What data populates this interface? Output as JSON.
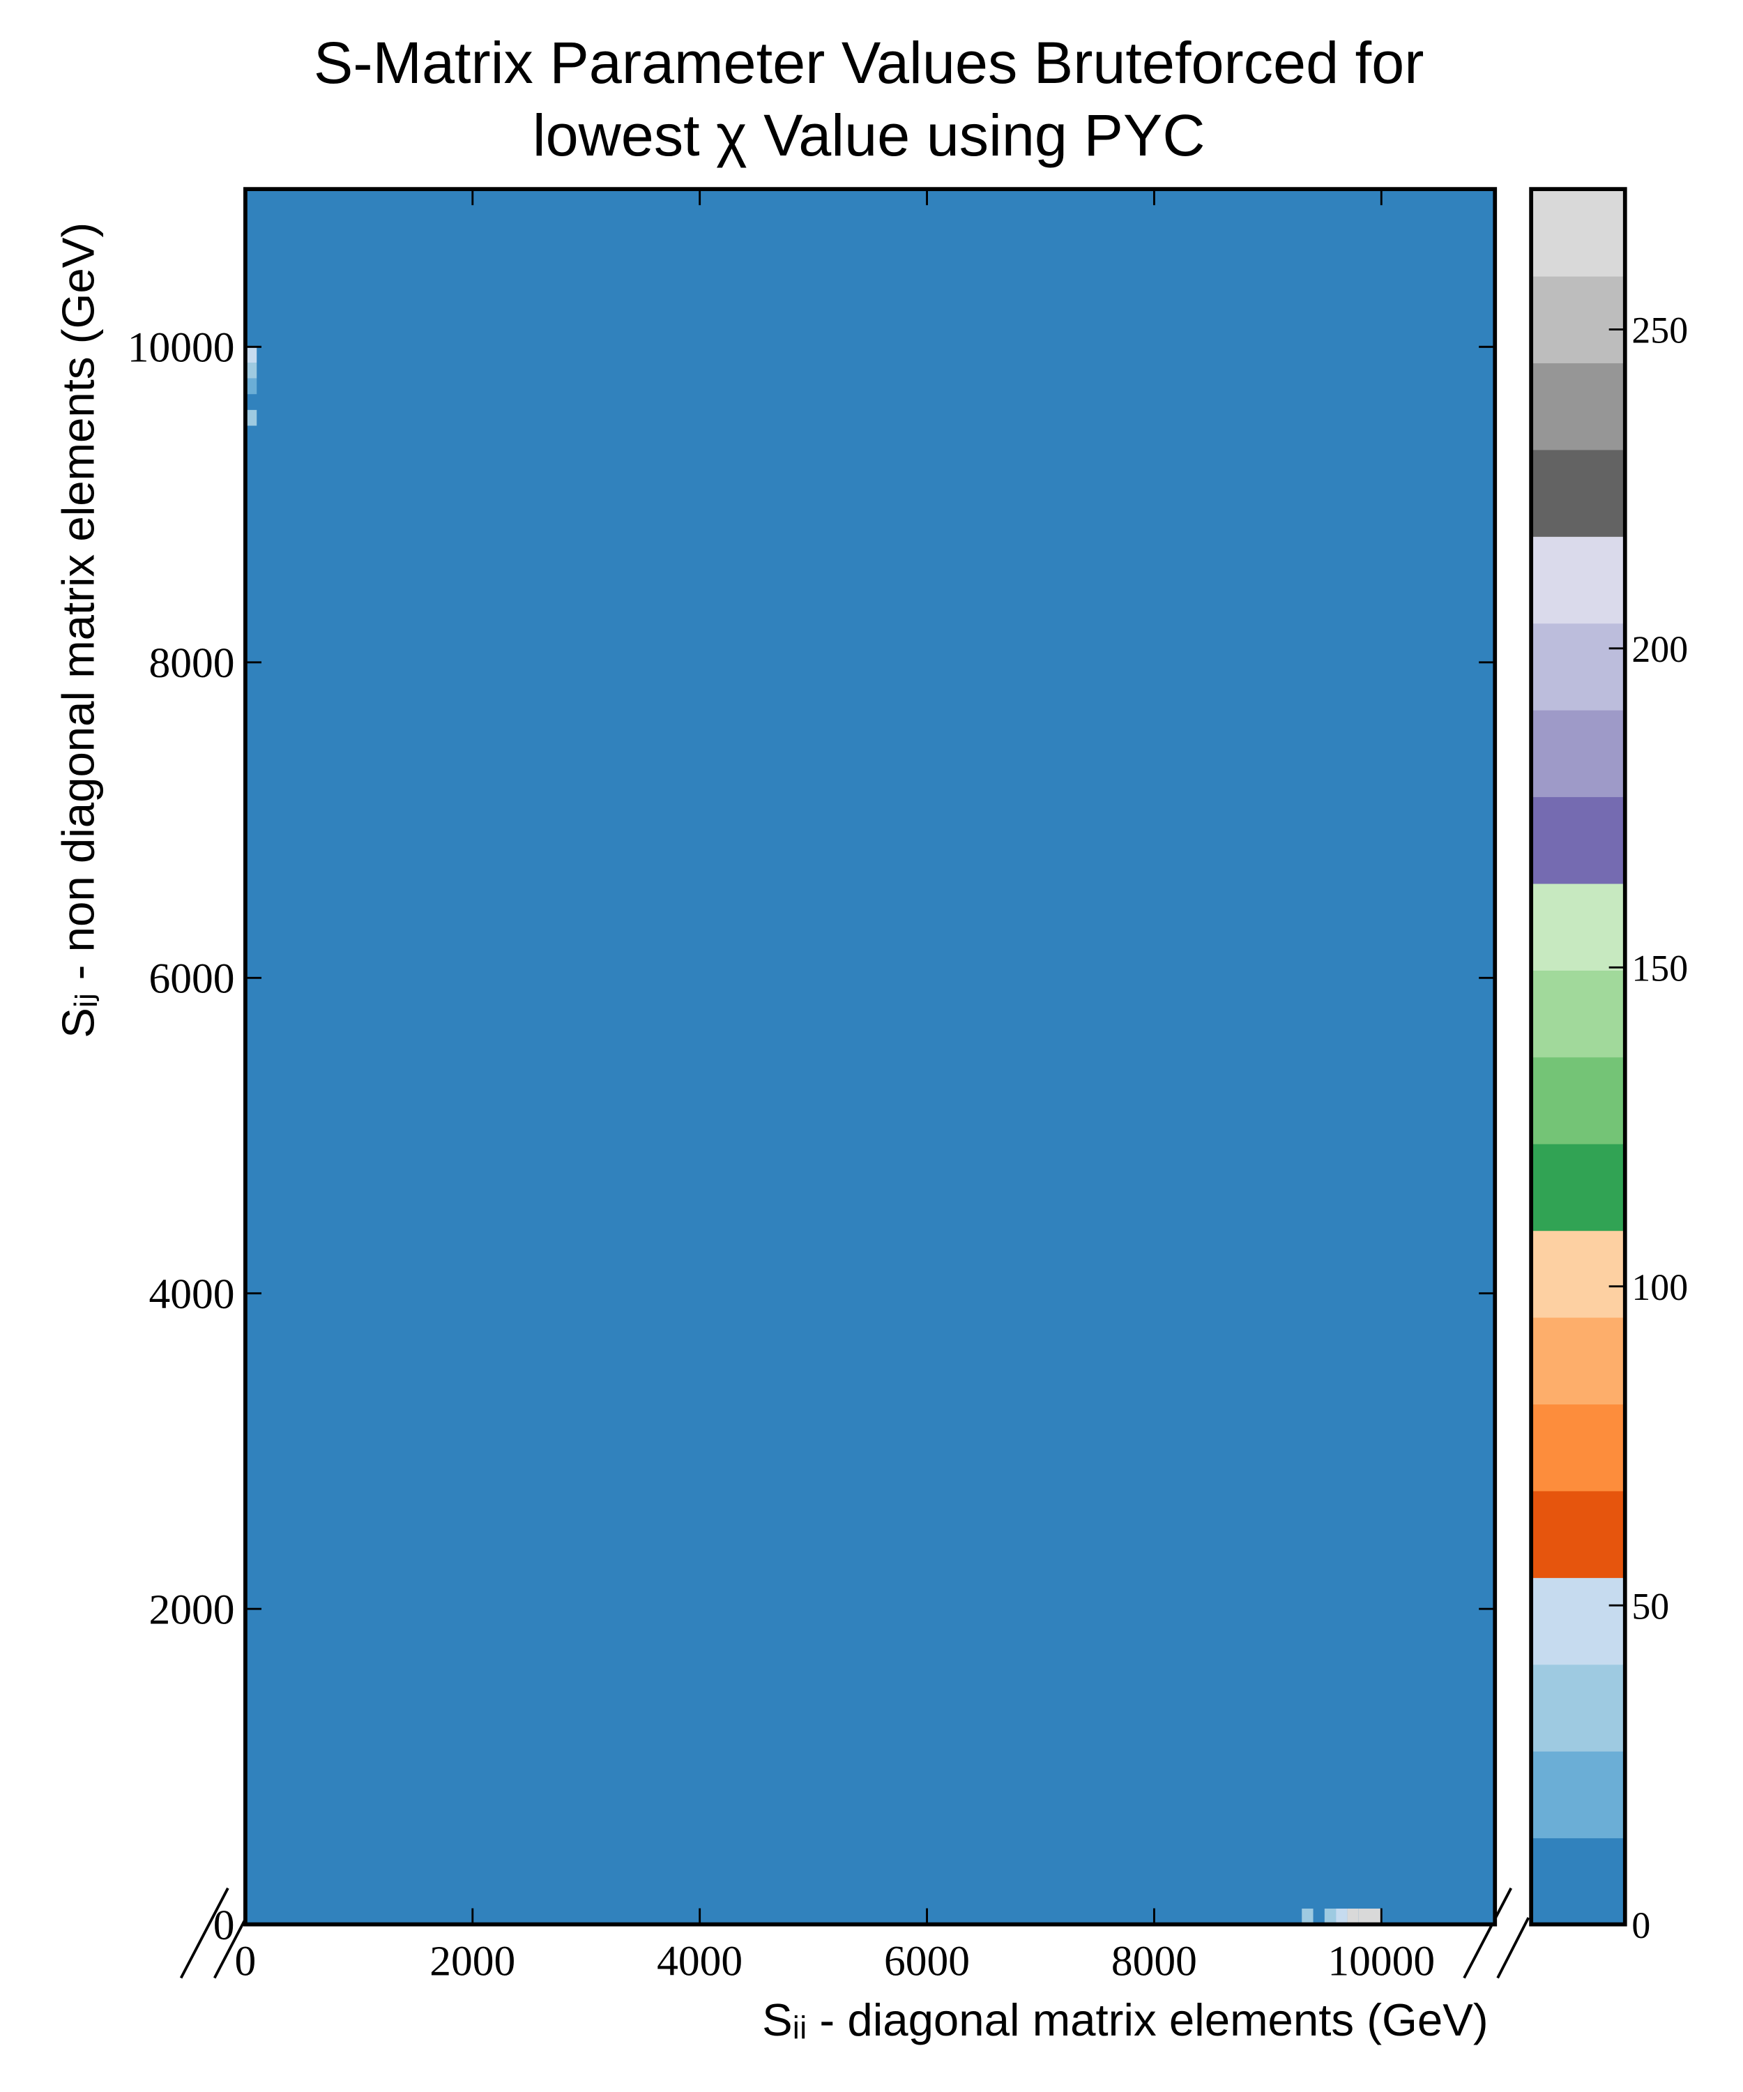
{
  "chart_data": {
    "type": "heatmap",
    "title": [
      "S-Matrix Parameter Values Bruteforced for",
      "lowest χ Value using PYC"
    ],
    "xlabel": "Sᵢᵢ - diagonal matrix elements (GeV)",
    "ylabel": "Sᵢⱼ - non diagonal matrix elements (GeV)",
    "xlim": [
      0,
      11000
    ],
    "ylim": [
      0,
      11000
    ],
    "xticks": [
      0,
      2000,
      4000,
      6000,
      8000,
      10000
    ],
    "yticks": [
      0,
      2000,
      4000,
      6000,
      8000,
      10000
    ],
    "cell_size": 100,
    "default_value": 0,
    "cells": [
      {
        "x": 0,
        "y": 9900,
        "value": 45
      },
      {
        "x": 0,
        "y": 9800,
        "value": 30
      },
      {
        "x": 0,
        "y": 9700,
        "value": 20
      },
      {
        "x": 0,
        "y": 9500,
        "value": 30
      },
      {
        "x": 9300,
        "y": 0,
        "value": 30
      },
      {
        "x": 9500,
        "y": 0,
        "value": 40
      },
      {
        "x": 9600,
        "y": 0,
        "value": 45
      },
      {
        "x": 9700,
        "y": 0,
        "value": 265
      },
      {
        "x": 9800,
        "y": 0,
        "value": 265
      },
      {
        "x": 9900,
        "y": 0,
        "value": 265
      }
    ],
    "colorbar": {
      "lim": [
        0,
        272
      ],
      "ticks": [
        0,
        50,
        100,
        150,
        200,
        250
      ],
      "colors": [
        "#3182bd",
        "#6baed6",
        "#9ecae1",
        "#c6dbef",
        "#e6550d",
        "#fd8d3c",
        "#fdae6b",
        "#fdd0a2",
        "#31a354",
        "#74c476",
        "#a1d99b",
        "#c7e9c0",
        "#756bb1",
        "#9e9ac8",
        "#bcbddc",
        "#dadaeb",
        "#636363",
        "#969696",
        "#bdbdbd",
        "#d9d9d9"
      ]
    }
  }
}
